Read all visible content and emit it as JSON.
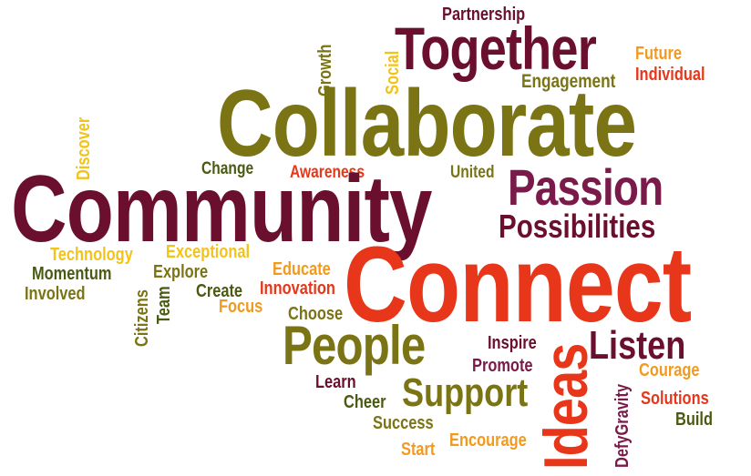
{
  "colors": {
    "maroon": "#6b0f2f",
    "olive": "#7a7414",
    "red": "#e8361a",
    "orange": "#f29a1f",
    "gold": "#f2c318",
    "darkgreen": "#4a5a12",
    "plum": "#7a1a4a"
  },
  "words": [
    {
      "key": "partnership",
      "text": "Partnership",
      "color": "maroon"
    },
    {
      "key": "together",
      "text": "Together",
      "color": "maroon"
    },
    {
      "key": "future",
      "text": "Future",
      "color": "orange"
    },
    {
      "key": "individual",
      "text": "Individual",
      "color": "red"
    },
    {
      "key": "engagement",
      "text": "Engagement",
      "color": "olive"
    },
    {
      "key": "growth",
      "text": "Growth",
      "color": "olive"
    },
    {
      "key": "social",
      "text": "Social",
      "color": "gold"
    },
    {
      "key": "collaborate",
      "text": "Collaborate",
      "color": "olive"
    },
    {
      "key": "discover",
      "text": "Discover",
      "color": "gold"
    },
    {
      "key": "change",
      "text": "Change",
      "color": "darkgreen"
    },
    {
      "key": "awareness",
      "text": "Awareness",
      "color": "red"
    },
    {
      "key": "united",
      "text": "United",
      "color": "olive"
    },
    {
      "key": "community",
      "text": "Community",
      "color": "maroon"
    },
    {
      "key": "passion",
      "text": "Passion",
      "color": "plum"
    },
    {
      "key": "possibilities",
      "text": "Possibilities",
      "color": "maroon"
    },
    {
      "key": "technology",
      "text": "Technology",
      "color": "gold"
    },
    {
      "key": "exceptional",
      "text": "Exceptional",
      "color": "gold"
    },
    {
      "key": "momentum",
      "text": "Momentum",
      "color": "darkgreen"
    },
    {
      "key": "explore",
      "text": "Explore",
      "color": "olive"
    },
    {
      "key": "educate",
      "text": "Educate",
      "color": "orange"
    },
    {
      "key": "connect",
      "text": "Connect",
      "color": "red"
    },
    {
      "key": "involved",
      "text": "Involved",
      "color": "olive"
    },
    {
      "key": "citizens",
      "text": "Citizens",
      "color": "olive"
    },
    {
      "key": "team",
      "text": "Team",
      "color": "darkgreen"
    },
    {
      "key": "create",
      "text": "Create",
      "color": "darkgreen"
    },
    {
      "key": "innovation",
      "text": "Innovation",
      "color": "red"
    },
    {
      "key": "focus",
      "text": "Focus",
      "color": "orange"
    },
    {
      "key": "choose",
      "text": "Choose",
      "color": "olive"
    },
    {
      "key": "people",
      "text": "People",
      "color": "olive"
    },
    {
      "key": "inspire",
      "text": "Inspire",
      "color": "maroon"
    },
    {
      "key": "ideas",
      "text": "Ideas",
      "color": "red"
    },
    {
      "key": "listen",
      "text": "Listen",
      "color": "maroon"
    },
    {
      "key": "promote",
      "text": "Promote",
      "color": "plum"
    },
    {
      "key": "courage",
      "text": "Courage",
      "color": "orange"
    },
    {
      "key": "learn",
      "text": "Learn",
      "color": "maroon"
    },
    {
      "key": "support",
      "text": "Support",
      "color": "olive"
    },
    {
      "key": "defygravity",
      "text": "DefyGravity",
      "color": "plum"
    },
    {
      "key": "solutions",
      "text": "Solutions",
      "color": "red"
    },
    {
      "key": "cheer",
      "text": "Cheer",
      "color": "darkgreen"
    },
    {
      "key": "build",
      "text": "Build",
      "color": "darkgreen"
    },
    {
      "key": "success",
      "text": "Success",
      "color": "olive"
    },
    {
      "key": "encourage",
      "text": "Encourage",
      "color": "orange"
    },
    {
      "key": "start",
      "text": "Start",
      "color": "orange"
    }
  ]
}
